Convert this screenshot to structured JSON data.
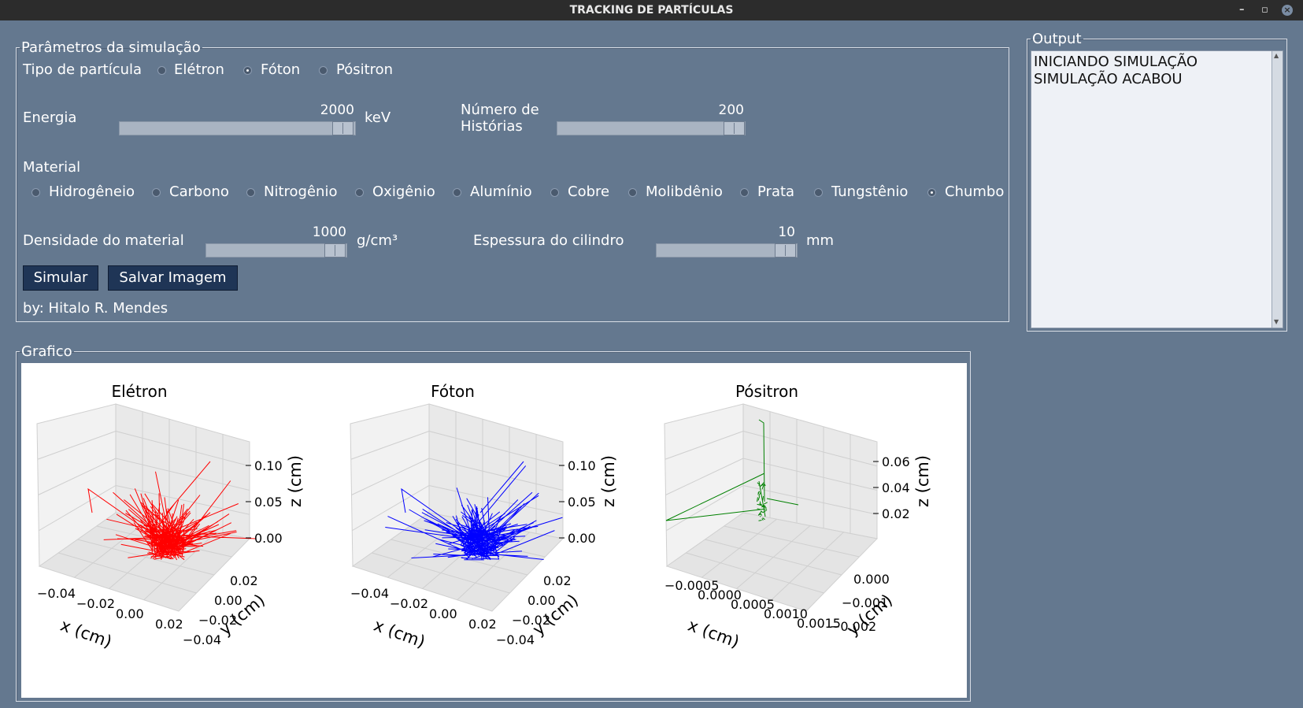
{
  "window": {
    "title": "TRACKING DE PARTÍCULAS"
  },
  "params": {
    "legend": "Parâmetros da simulação",
    "particle_label": "Tipo de partícula",
    "particles": [
      "Elétron",
      "Fóton",
      "Pósitron"
    ],
    "particle_selected": "Fóton",
    "energy_label": "Energia",
    "energy_value": "2000",
    "energy_unit": "keV",
    "histories_label_1": "Número de",
    "histories_label_2": "Histórias",
    "histories_value": "200",
    "material_label": "Material",
    "materials": [
      "Hidrogêneio",
      "Carbono",
      "Nitrogênio",
      "Oxigênio",
      "Alumínio",
      "Cobre",
      "Molibdênio",
      "Prata",
      "Tungstênio",
      "Chumbo"
    ],
    "material_selected": "Chumbo",
    "density_label": "Densidade do material",
    "density_value": "1000",
    "density_unit": "g/cm³",
    "thickness_label": "Espessura do cilindro",
    "thickness_value": "10",
    "thickness_unit": "mm",
    "simulate_button": "Simular",
    "save_button": "Salvar Imagem",
    "author": "by: Hitalo R. Mendes"
  },
  "output": {
    "legend": "Output",
    "lines": [
      "INICIANDO SIMULAÇÃO",
      "SIMULAÇÃO ACABOU"
    ]
  },
  "graph": {
    "legend": "Grafico"
  },
  "chart_data": [
    {
      "type": "line3d",
      "title": "Elétron",
      "color": "#ff0000",
      "xlabel": "x (cm)",
      "ylabel": "y (cm)",
      "zlabel": "z (cm)",
      "xticks": [
        "−0.04",
        "−0.02",
        "0.00",
        "0.02"
      ],
      "yticks": [
        "0.02",
        "0.00",
        "−0.02",
        "−0.04"
      ],
      "zticks": [
        "0.10",
        "0.05",
        "0.00"
      ]
    },
    {
      "type": "line3d",
      "title": "Fóton",
      "color": "#0000ff",
      "xlabel": "x (cm)",
      "ylabel": "y (cm)",
      "zlabel": "z (cm)",
      "xticks": [
        "−0.04",
        "−0.02",
        "0.00",
        "0.02"
      ],
      "yticks": [
        "0.02",
        "0.00",
        "−0.02",
        "−0.04"
      ],
      "zticks": [
        "0.10",
        "0.05",
        "0.00"
      ]
    },
    {
      "type": "line3d",
      "title": "Pósitron",
      "color": "#008000",
      "xlabel": "x (cm)",
      "ylabel": "y (cm)",
      "zlabel": "z (cm)",
      "xticks": [
        "−0.0005",
        "0.0000",
        "0.0005",
        "0.0010",
        "0.0015"
      ],
      "yticks": [
        "0.000",
        "−0.001",
        "−0.002"
      ],
      "zticks": [
        "0.06",
        "0.04",
        "0.02"
      ]
    }
  ]
}
